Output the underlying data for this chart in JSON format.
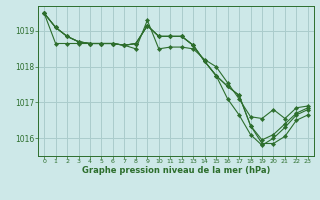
{
  "background_color": "#cde8e8",
  "grid_color": "#aacccc",
  "line_color": "#2d6e2d",
  "marker_color": "#2d6e2d",
  "xlabel": "Graphe pression niveau de la mer (hPa)",
  "ylim": [
    1015.5,
    1019.7
  ],
  "yticks": [
    1016,
    1017,
    1018,
    1019
  ],
  "xlim": [
    -0.5,
    23.5
  ],
  "xticks": [
    0,
    1,
    2,
    3,
    4,
    5,
    6,
    7,
    8,
    9,
    10,
    11,
    12,
    13,
    14,
    15,
    16,
    17,
    18,
    19,
    20,
    21,
    22,
    23
  ],
  "series": [
    [
      1019.5,
      1019.1,
      1018.85,
      1018.7,
      1018.65,
      1018.65,
      1018.65,
      1018.6,
      1018.5,
      1019.3,
      1018.5,
      1018.55,
      1018.55,
      1018.5,
      1018.2,
      1018.0,
      1017.55,
      1017.1,
      1016.6,
      1016.55,
      1016.8,
      1016.55,
      1016.85,
      1016.9
    ],
    [
      1019.5,
      1019.1,
      1018.85,
      1018.7,
      1018.65,
      1018.65,
      1018.65,
      1018.6,
      1018.65,
      1019.15,
      1018.85,
      1018.85,
      1018.85,
      1018.6,
      1018.15,
      1017.75,
      1017.45,
      1017.2,
      1016.35,
      1015.85,
      1015.85,
      1016.05,
      1016.5,
      1016.65
    ],
    [
      1019.5,
      1019.1,
      1018.85,
      1018.7,
      1018.65,
      1018.65,
      1018.65,
      1018.6,
      1018.65,
      1019.15,
      1018.85,
      1018.85,
      1018.85,
      1018.6,
      1018.15,
      1017.75,
      1017.1,
      1016.65,
      1016.1,
      1015.8,
      1016.0,
      1016.3,
      1016.65,
      1016.8
    ],
    [
      1019.5,
      1018.65,
      1018.65,
      1018.65,
      1018.65,
      1018.65,
      1018.65,
      1018.6,
      1018.65,
      1019.15,
      1018.85,
      1018.85,
      1018.85,
      1018.6,
      1018.15,
      1017.75,
      1017.45,
      1017.2,
      1016.35,
      1015.95,
      1016.1,
      1016.4,
      1016.7,
      1016.85
    ]
  ]
}
